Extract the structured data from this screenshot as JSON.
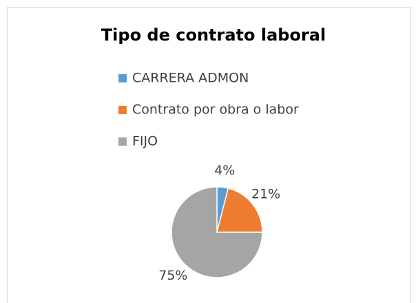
{
  "chart_data": {
    "type": "pie",
    "title": "Tipo de contrato laboral",
    "categories": [
      "CARRERA ADMON",
      "Contrato por obra o labor",
      "FIJO"
    ],
    "values": [
      4,
      21,
      75
    ],
    "value_labels": [
      "4%",
      "21%",
      "75%"
    ],
    "colors": [
      "#5b9bd5",
      "#ed7d31",
      "#a5a5a5"
    ],
    "legend": "top"
  }
}
